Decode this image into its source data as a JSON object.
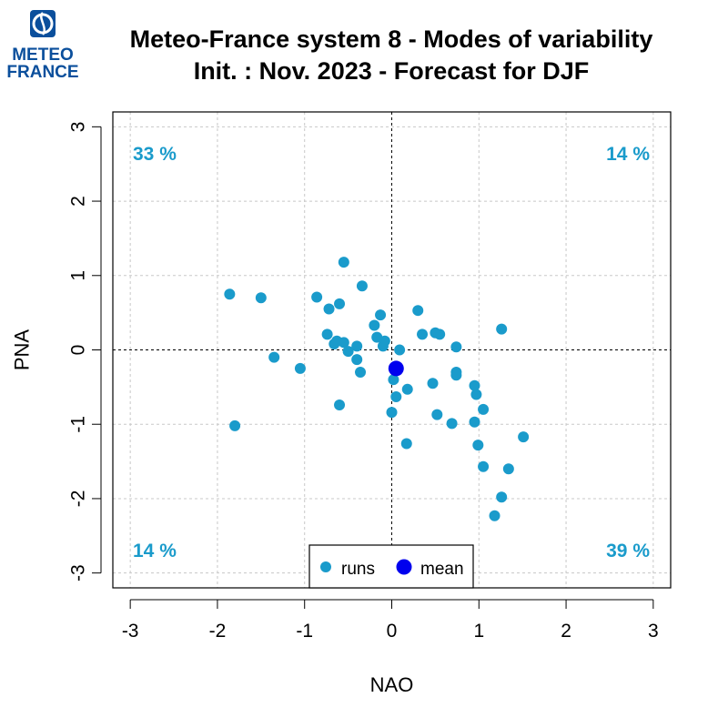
{
  "header": {
    "title_line1": "Meteo-France system 8 - Modes of variability",
    "title_line2": "Init. : Nov. 2023 - Forecast for DJF"
  },
  "logo": {
    "line1": "METEO",
    "line2": "FRANCE",
    "color": "#0b4f9c"
  },
  "chart_data": {
    "type": "scatter",
    "xlabel": "NAO",
    "ylabel": "PNA",
    "xlim": [
      -3.2,
      3.2
    ],
    "ylim": [
      -3.2,
      3.2
    ],
    "xticks": [
      -3,
      -2,
      -1,
      0,
      1,
      2,
      3
    ],
    "yticks": [
      -3,
      -2,
      -1,
      0,
      1,
      2,
      3
    ],
    "grid": true,
    "reference_lines": {
      "x": 0,
      "y": 0
    },
    "quadrant_labels": {
      "top_left": "33 %",
      "top_right": "14 %",
      "bottom_left": "14 %",
      "bottom_right": "39 %"
    },
    "quadrant_label_color": "#1a9bcb",
    "legend": {
      "position": "bottom-center",
      "entries": [
        "runs",
        "mean"
      ]
    },
    "series": [
      {
        "name": "runs",
        "color": "#1a9bcb",
        "points": [
          [
            -1.86,
            0.75
          ],
          [
            -1.5,
            0.7
          ],
          [
            -1.8,
            -1.02
          ],
          [
            -1.35,
            -0.1
          ],
          [
            -1.05,
            -0.25
          ],
          [
            -0.86,
            0.71
          ],
          [
            -0.6,
            0.62
          ],
          [
            -0.55,
            1.18
          ],
          [
            -0.72,
            0.55
          ],
          [
            -0.34,
            0.86
          ],
          [
            -0.74,
            0.21
          ],
          [
            -0.66,
            0.08
          ],
          [
            -0.63,
            0.12
          ],
          [
            -0.55,
            0.1
          ],
          [
            -0.5,
            -0.02
          ],
          [
            -0.4,
            0.05
          ],
          [
            -0.4,
            -0.13
          ],
          [
            -0.36,
            -0.3
          ],
          [
            -0.6,
            -0.74
          ],
          [
            -0.2,
            0.33
          ],
          [
            -0.17,
            0.17
          ],
          [
            -0.13,
            0.47
          ],
          [
            -0.08,
            0.12
          ],
          [
            -0.1,
            0.05
          ],
          [
            0.02,
            -0.4
          ],
          [
            0.05,
            -0.63
          ],
          [
            0.09,
            0.0
          ],
          [
            0.18,
            -0.53
          ],
          [
            0.0,
            -0.84
          ],
          [
            0.17,
            -1.26
          ],
          [
            0.3,
            0.53
          ],
          [
            0.35,
            0.21
          ],
          [
            0.5,
            0.23
          ],
          [
            0.55,
            0.21
          ],
          [
            0.47,
            -0.45
          ],
          [
            0.52,
            -0.87
          ],
          [
            0.69,
            -0.99
          ],
          [
            0.74,
            0.04
          ],
          [
            0.74,
            -0.3
          ],
          [
            0.74,
            -0.34
          ],
          [
            0.95,
            -0.48
          ],
          [
            0.97,
            -0.6
          ],
          [
            0.95,
            -0.97
          ],
          [
            1.05,
            -0.8
          ],
          [
            0.99,
            -1.28
          ],
          [
            1.05,
            -1.57
          ],
          [
            1.26,
            0.28
          ],
          [
            1.34,
            -1.6
          ],
          [
            1.26,
            -1.98
          ],
          [
            1.18,
            -2.23
          ],
          [
            1.51,
            -1.17
          ]
        ]
      },
      {
        "name": "mean",
        "color": "#0000ee",
        "points": [
          [
            0.05,
            -0.25
          ]
        ]
      }
    ]
  }
}
